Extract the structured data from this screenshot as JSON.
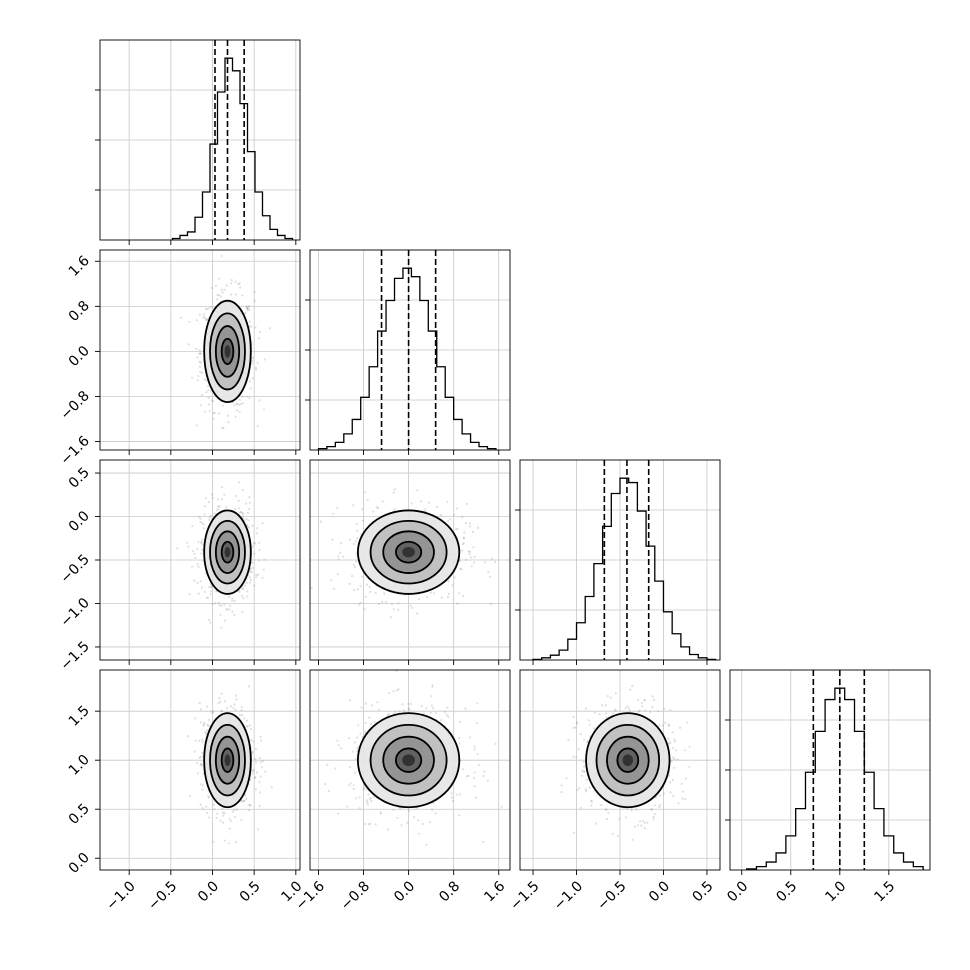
{
  "chart_data": {
    "type": "corner",
    "grid": true,
    "parameters": [
      {
        "mean": 0.18,
        "std": 0.14,
        "quantiles": [
          0.03,
          0.18,
          0.38
        ],
        "range": [
          -1.35,
          1.05
        ],
        "ticks": [
          -1.0,
          -0.5,
          0.0,
          0.5,
          1.0
        ],
        "tick_labels": [
          "−1.0",
          "−0.5",
          "0.0",
          "0.5",
          "1.0"
        ]
      },
      {
        "mean": 0.0,
        "std": 0.45,
        "quantiles": [
          -0.48,
          0.0,
          0.48
        ],
        "range": [
          -1.75,
          1.8
        ],
        "ticks": [
          -1.6,
          -0.8,
          0.0,
          0.8,
          1.6
        ],
        "tick_labels": [
          "−1.6",
          "−0.8",
          "0.0",
          "0.8",
          "1.6"
        ]
      },
      {
        "mean": -0.41,
        "std": 0.24,
        "quantiles": [
          -0.68,
          -0.42,
          -0.17
        ],
        "range": [
          -1.65,
          0.65
        ],
        "ticks": [
          -1.5,
          -1.0,
          -0.5,
          0.0,
          0.5
        ],
        "tick_labels": [
          "−1.5",
          "−1.0",
          "−0.5",
          "0.0",
          "0.5"
        ]
      },
      {
        "mean": 1.0,
        "std": 0.24,
        "quantiles": [
          0.73,
          1.0,
          1.25
        ],
        "range": [
          -0.12,
          1.92
        ],
        "ticks": [
          0.0,
          0.5,
          1.0,
          1.5
        ],
        "tick_labels": [
          "0.0",
          "0.5",
          "1.0",
          "1.5"
        ]
      }
    ],
    "histograms": [
      {
        "param": 0,
        "bin_edges": [
          -0.48,
          -0.39,
          -0.3,
          -0.21,
          -0.12,
          -0.03,
          0.06,
          0.15,
          0.24,
          0.33,
          0.42,
          0.51,
          0.6,
          0.69,
          0.78,
          0.87,
          0.96
        ],
        "counts": [
          3,
          9,
          16,
          45,
          95,
          190,
          293,
          360,
          335,
          270,
          175,
          95,
          48,
          21,
          9,
          3
        ]
      },
      {
        "param": 1,
        "bin_edges": [
          -1.6,
          -1.45,
          -1.3,
          -1.15,
          -1.0,
          -0.85,
          -0.7,
          -0.55,
          -0.4,
          -0.25,
          -0.1,
          0.05,
          0.2,
          0.35,
          0.5,
          0.65,
          0.8,
          0.95,
          1.1,
          1.25,
          1.4,
          1.55
        ],
        "counts": [
          8,
          20,
          45,
          95,
          180,
          310,
          490,
          700,
          880,
          1010,
          1070,
          1020,
          880,
          700,
          490,
          310,
          180,
          95,
          45,
          20,
          8
        ]
      },
      {
        "param": 2,
        "bin_edges": [
          -1.5,
          -1.4,
          -1.3,
          -1.2,
          -1.1,
          -1.0,
          -0.9,
          -0.8,
          -0.7,
          -0.6,
          -0.5,
          -0.4,
          -0.3,
          -0.2,
          -0.1,
          0.0,
          0.1,
          0.2,
          0.3,
          0.4,
          0.5,
          0.6
        ],
        "counts": [
          3,
          10,
          22,
          45,
          95,
          170,
          290,
          440,
          610,
          760,
          830,
          810,
          680,
          520,
          360,
          220,
          120,
          60,
          25,
          10,
          3
        ]
      },
      {
        "param": 3,
        "bin_edges": [
          0.05,
          0.15,
          0.25,
          0.35,
          0.45,
          0.55,
          0.65,
          0.75,
          0.85,
          0.95,
          1.05,
          1.15,
          1.25,
          1.35,
          1.45,
          1.55,
          1.65,
          1.75,
          1.85
        ],
        "counts": [
          5,
          15,
          35,
          75,
          150,
          270,
          430,
          610,
          750,
          800,
          750,
          610,
          430,
          270,
          150,
          75,
          35,
          15
        ]
      }
    ],
    "panels_2d": [
      {
        "x_param": 0,
        "y_param": 1
      },
      {
        "x_param": 0,
        "y_param": 2
      },
      {
        "x_param": 1,
        "y_param": 2
      },
      {
        "x_param": 0,
        "y_param": 3
      },
      {
        "x_param": 1,
        "y_param": 3
      },
      {
        "x_param": 2,
        "y_param": 3
      }
    ],
    "contour_levels_sigma": [
      0.5,
      1.0,
      1.5,
      2.0
    ],
    "colors": {
      "line": "#000000",
      "grid": "#c8c8c8",
      "points": "#8c8c8c"
    }
  }
}
